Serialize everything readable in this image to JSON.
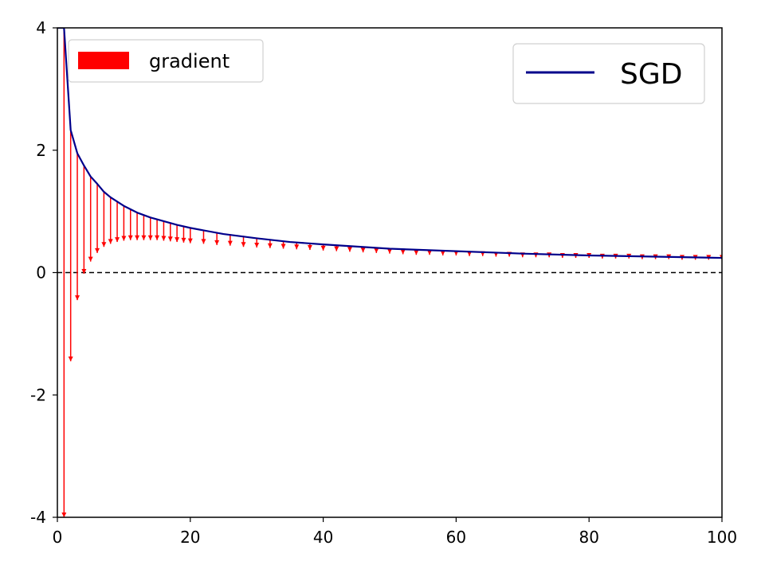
{
  "chart_data": {
    "type": "line",
    "title": "",
    "xlabel": "",
    "ylabel": "",
    "xlim": [
      0,
      100
    ],
    "ylim": [
      -4,
      4
    ],
    "x_ticks": [
      0,
      20,
      40,
      60,
      80,
      100
    ],
    "x_tick_labels": [
      "0",
      "20",
      "40",
      "60",
      "80",
      "100"
    ],
    "y_ticks": [
      -4,
      -2,
      0,
      2,
      4
    ],
    "y_tick_labels": [
      "-4",
      "-2",
      "0",
      "2",
      "4"
    ],
    "grid": false,
    "reference_line": {
      "y": 0,
      "style": "dashed",
      "color": "#000000"
    },
    "series": [
      {
        "name": "SGD",
        "kind": "line",
        "color": "#00008b",
        "x": [
          0,
          1,
          2,
          3,
          4,
          5,
          6,
          7,
          8,
          9,
          10,
          12,
          14,
          16,
          18,
          20,
          25,
          30,
          35,
          40,
          50,
          60,
          70,
          80,
          90,
          100
        ],
        "y": [
          4.0,
          4.0,
          2.33,
          1.95,
          1.75,
          1.57,
          1.45,
          1.32,
          1.23,
          1.16,
          1.09,
          0.98,
          0.9,
          0.84,
          0.78,
          0.73,
          0.63,
          0.56,
          0.5,
          0.46,
          0.39,
          0.35,
          0.31,
          0.28,
          0.26,
          0.24
        ]
      }
    ],
    "gradient_arrows": {
      "name": "gradient",
      "color": "#ff0000",
      "x": [
        1,
        2,
        3,
        4,
        5,
        6,
        7,
        8,
        9,
        10,
        11,
        12,
        13,
        14,
        15,
        16,
        17,
        18,
        19,
        20,
        22,
        24,
        26,
        28,
        30,
        32,
        34,
        36,
        38,
        40,
        42,
        44,
        46,
        48,
        50,
        52,
        54,
        56,
        58,
        60,
        62,
        64,
        66,
        68,
        70,
        72,
        74,
        76,
        78,
        80,
        82,
        84,
        86,
        88,
        90,
        92,
        94,
        96,
        98,
        100
      ],
      "y_start": [
        4.0,
        2.33,
        1.95,
        1.75,
        1.57,
        1.45,
        1.32,
        1.23,
        1.16,
        1.09,
        1.03,
        0.98,
        0.94,
        0.9,
        0.87,
        0.84,
        0.81,
        0.78,
        0.76,
        0.73,
        0.69,
        0.66,
        0.63,
        0.6,
        0.56,
        0.54,
        0.52,
        0.5,
        0.48,
        0.46,
        0.44,
        0.43,
        0.42,
        0.4,
        0.39,
        0.38,
        0.37,
        0.36,
        0.355,
        0.35,
        0.34,
        0.33,
        0.325,
        0.32,
        0.31,
        0.305,
        0.3,
        0.29,
        0.285,
        0.28,
        0.275,
        0.27,
        0.265,
        0.26,
        0.26,
        0.255,
        0.25,
        0.245,
        0.24,
        0.24
      ],
      "y_end": [
        -4.0,
        -1.45,
        -0.45,
        -0.02,
        0.18,
        0.32,
        0.42,
        0.47,
        0.5,
        0.52,
        0.53,
        0.53,
        0.53,
        0.53,
        0.53,
        0.52,
        0.51,
        0.5,
        0.49,
        0.48,
        0.47,
        0.45,
        0.44,
        0.42,
        0.41,
        0.4,
        0.39,
        0.38,
        0.37,
        0.36,
        0.35,
        0.34,
        0.33,
        0.32,
        0.31,
        0.3,
        0.29,
        0.29,
        0.28,
        0.28,
        0.27,
        0.27,
        0.26,
        0.26,
        0.25,
        0.25,
        0.25,
        0.24,
        0.24,
        0.24,
        0.23,
        0.23,
        0.23,
        0.22,
        0.22,
        0.22,
        0.21,
        0.21,
        0.21,
        0.21
      ]
    },
    "legends": [
      {
        "label": "gradient",
        "placement": "upper-left",
        "swatch": "patch",
        "color": "#ff0000"
      },
      {
        "label": "SGD",
        "placement": "upper-right",
        "swatch": "line",
        "color": "#00008b"
      }
    ]
  }
}
